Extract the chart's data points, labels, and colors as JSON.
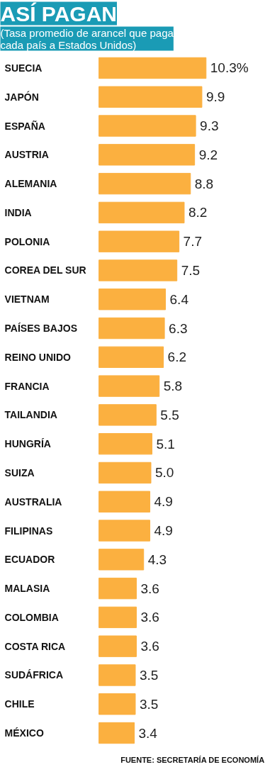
{
  "chart_data": {
    "type": "bar",
    "orientation": "horizontal",
    "title": "ASÍ PAGAN",
    "subtitle": "(Tasa promedio de arancel que paga cada país a Estados Unidos)",
    "categories": [
      "SUECIA",
      "JAPÓN",
      "ESPAÑA",
      "AUSTRIA",
      "ALEMANIA",
      "INDIA",
      "POLONIA",
      "COREA DEL SUR",
      "VIETNAM",
      "PAÍSES BAJOS",
      "REINO UNIDO",
      "FRANCIA",
      "TAILANDIA",
      "HUNGRÍA",
      "SUIZA",
      "AUSTRALIA",
      "FILIPINAS",
      "ECUADOR",
      "MALASIA",
      "COLOMBIA",
      "COSTA RICA",
      "SUDÁFRICA",
      "CHILE",
      "MÉXICO"
    ],
    "values": [
      10.3,
      9.9,
      9.3,
      9.2,
      8.8,
      8.2,
      7.7,
      7.5,
      6.4,
      6.3,
      6.2,
      5.8,
      5.5,
      5.1,
      5.0,
      4.9,
      4.9,
      4.3,
      3.6,
      3.6,
      3.6,
      3.5,
      3.5,
      3.4
    ],
    "value_labels": [
      "10.3%",
      "9.9",
      "9.3",
      "9.2",
      "8.8",
      "8.2",
      "7.7",
      "7.5",
      "6.4",
      "6.3",
      "6.2",
      "5.8",
      "5.5",
      "5.1",
      "5.0",
      "4.9",
      "4.9",
      "4.3",
      "3.6",
      "3.6",
      "3.6",
      "3.5",
      "3.5",
      "3.4"
    ],
    "color": "#fbb040",
    "grid": false,
    "annotations": [
      "FUENTE: SECRETARÍA DE ECONOMÍA"
    ]
  }
}
